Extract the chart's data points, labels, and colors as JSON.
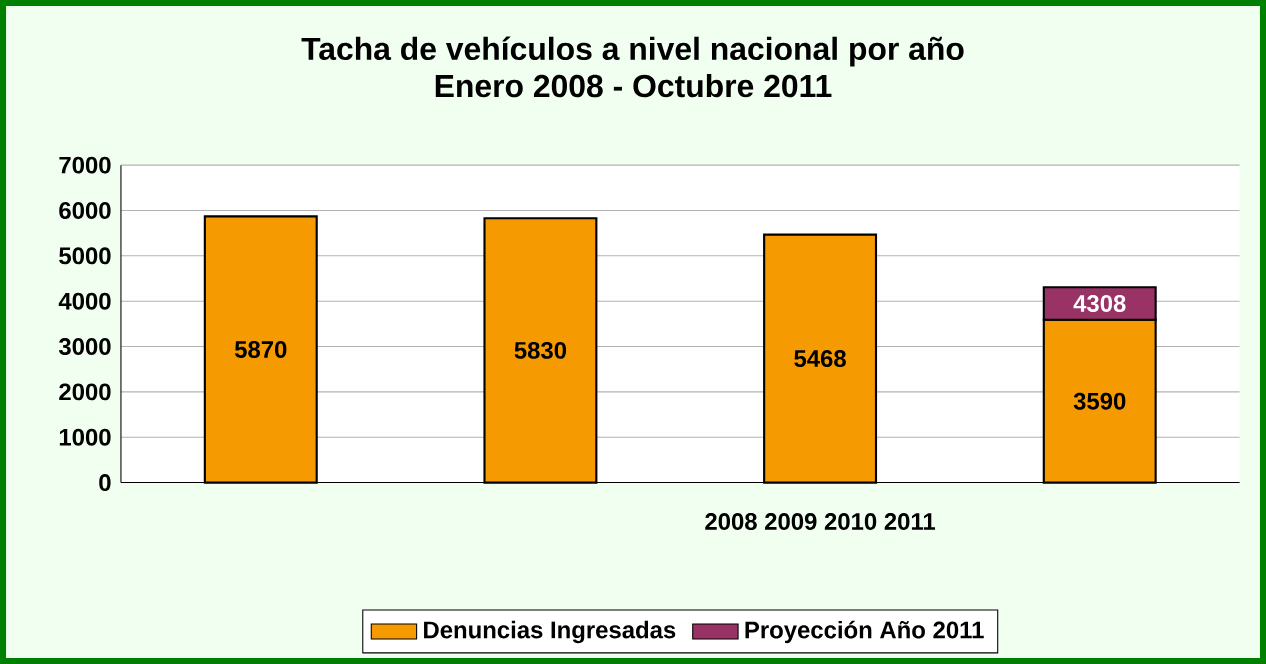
{
  "chart_data": {
    "type": "bar",
    "stacked": true,
    "title": "Tacha de vehículos a nivel nacional por año",
    "subtitle": "Enero 2008 - Octubre 2011",
    "categories": [
      null,
      null,
      null,
      null
    ],
    "series": [
      {
        "name": "Denuncias Ingresadas",
        "color": "#f59a00",
        "values": [
          5870,
          5830,
          5468,
          3590
        ],
        "value_labels": [
          "5870",
          "5830",
          "5468",
          "3590"
        ]
      },
      {
        "name": "Proyección Año 2011",
        "color": "#993366",
        "values": [
          null,
          null,
          null,
          718
        ]
      }
    ],
    "totals": [
      null,
      null,
      null,
      "4308"
    ],
    "ylim": [
      0,
      7000
    ],
    "yticks": [
      0,
      1000,
      2000,
      3000,
      4000,
      5000,
      6000,
      7000
    ],
    "grid": "y",
    "legend": "bottom",
    "annotations": [
      "2008 2009 2010 2011"
    ]
  }
}
